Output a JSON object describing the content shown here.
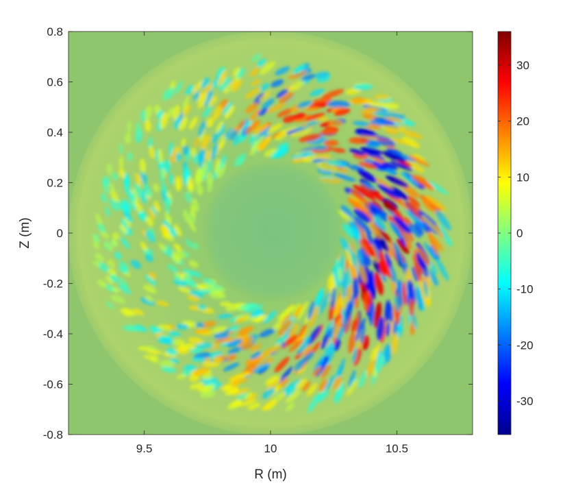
{
  "chart_data": {
    "type": "heatmap",
    "title": "",
    "xlabel": "R (m)",
    "ylabel": "Z (m)",
    "xlim": [
      9.2,
      10.8
    ],
    "ylim": [
      -0.8,
      0.8
    ],
    "x_ticks": [
      9.5,
      10,
      10.5
    ],
    "x_tick_labels": [
      "9.5",
      "10",
      "10.5"
    ],
    "y_ticks": [
      0.8,
      0.6,
      0.4,
      0.2,
      0,
      -0.2,
      -0.4,
      -0.6,
      -0.8
    ],
    "y_tick_labels": [
      "0.8",
      "0.6",
      "0.4",
      "0.2",
      "0",
      "-0.2",
      "-0.4",
      "-0.6",
      "-0.8"
    ],
    "grid": false,
    "colorbar": {
      "colormap": "jet",
      "range": [
        -36,
        36
      ],
      "ticks": [
        30,
        20,
        10,
        0,
        -10,
        -20,
        -30
      ],
      "tick_labels": [
        "30",
        "20",
        "10",
        "0",
        "-10",
        "-20",
        "-30"
      ]
    },
    "field_description_values": {
      "center_R": 10.0,
      "center_Z": 0.0,
      "turbulent_annulus_inner_radius": 0.3,
      "turbulent_annulus_outer_radius": 0.7,
      "peak_value": 36,
      "min_value": -36
    }
  },
  "colors": {
    "background_outer": "#90c66c",
    "background_circle": "#b2d46a",
    "core": "#7cc482",
    "axis": "#262626"
  }
}
